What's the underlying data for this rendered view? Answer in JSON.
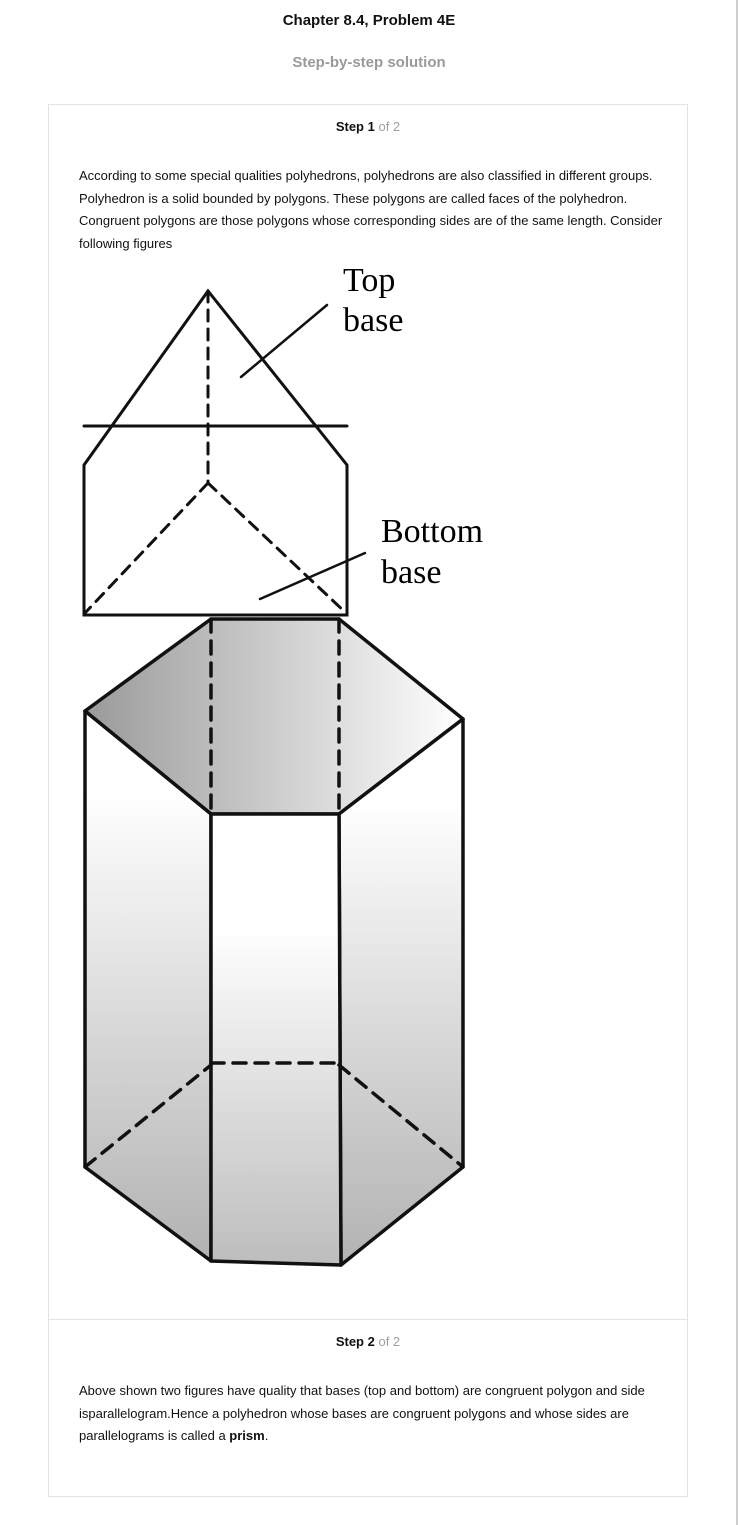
{
  "header": {
    "title": "Chapter 8.4, Problem 4E",
    "subtitle": "Step-by-step solution"
  },
  "steps": [
    {
      "label": "Step 1",
      "of_text": "of 2",
      "text": "According to some special qualities polyhedrons, polyhedrons are also classified in different groups. Polyhedron is a solid bounded by polygons. These polygons are called faces of the polyhedron. Congruent polygons are those polygons whose corresponding sides are of the same length. Consider following figures"
    },
    {
      "label": "Step 2",
      "of_text": "of 2",
      "text_before": "Above shown two figures have quality that bases (top and bottom) are congruent polygon and side isparallelogram.Hence a polyhedron whose bases are congruent polygons and whose sides are parallelograms is called a ",
      "bold_term": "prism",
      "text_after": "."
    }
  ],
  "figure": {
    "label_top_line1": "Top",
    "label_top_line2": "base",
    "label_bottom_line1": "Bottom",
    "label_bottom_line2": "base"
  }
}
